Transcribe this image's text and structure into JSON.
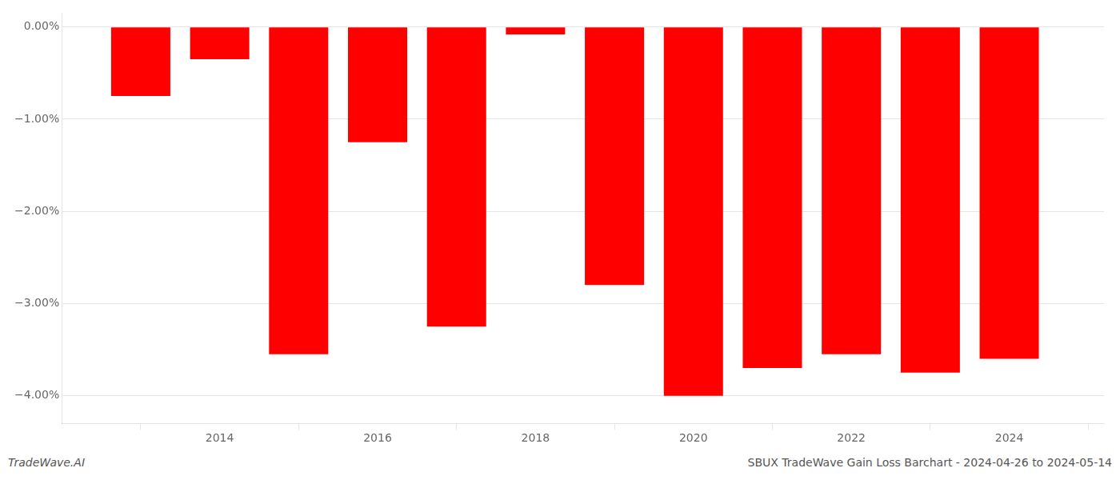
{
  "chart_data": {
    "type": "bar",
    "title": "SBUX TradeWave Gain Loss Barchart - 2024-04-26 to 2024-05-14",
    "annotations": [
      "TradeWave.AI"
    ],
    "x": [
      2013,
      2014,
      2015,
      2016,
      2017,
      2018,
      2019,
      2020,
      2021,
      2022,
      2023,
      2024
    ],
    "values": [
      -0.75,
      -0.35,
      -3.55,
      -1.25,
      -3.25,
      -0.08,
      -2.8,
      -4.0,
      -3.7,
      -3.55,
      -3.75,
      -3.6
    ],
    "color": "#ff0000",
    "xlim": [
      2012.0,
      2025.2
    ],
    "xticks": [
      2014,
      2016,
      2018,
      2020,
      2022,
      2024
    ],
    "ylim": [
      -4.3,
      0.15
    ],
    "yticks": [
      {
        "value": 0.0,
        "label": "0.00%"
      },
      {
        "value": -1.0,
        "label": "−1.00%"
      },
      {
        "value": -2.0,
        "label": "−2.00%"
      },
      {
        "value": -3.0,
        "label": "−3.00%"
      },
      {
        "value": -4.0,
        "label": "−4.00%"
      }
    ],
    "grid": true
  }
}
